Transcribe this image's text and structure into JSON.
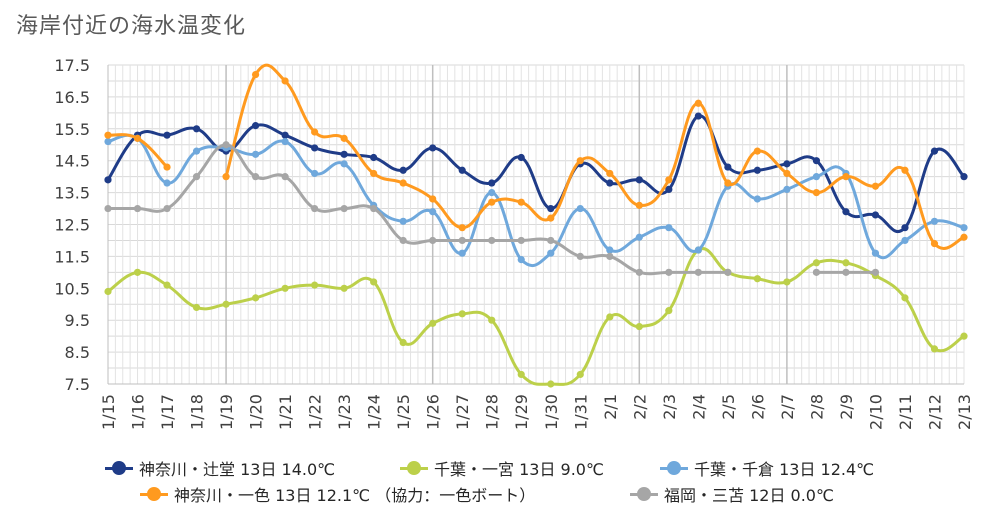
{
  "title": "海岸付近の海水温変化",
  "chart_data": {
    "type": "line",
    "title": "海岸付近の海水温変化",
    "xlabel": "",
    "ylabel": "",
    "ylim": [
      7.5,
      17.5
    ],
    "yticks": [
      "17.5",
      "16.5",
      "15.5",
      "14.5",
      "13.5",
      "12.5",
      "11.5",
      "10.5",
      "9.5",
      "8.5",
      "7.5"
    ],
    "grid": true,
    "legend_position": "bottom",
    "categories": [
      "1/15",
      "1/16",
      "1/17",
      "1/18",
      "1/19",
      "1/20",
      "1/21",
      "1/22",
      "1/23",
      "1/24",
      "1/25",
      "1/26",
      "1/27",
      "1/28",
      "1/29",
      "1/30",
      "1/31",
      "2/1",
      "2/2",
      "2/3",
      "2/4",
      "2/5",
      "2/6",
      "2/7",
      "2/8",
      "2/9",
      "2/10",
      "2/11",
      "2/12",
      "2/13"
    ],
    "series": [
      {
        "name": "神奈川・辻堂 13日 14.0℃",
        "color": "#1f3c88",
        "values": [
          13.9,
          15.3,
          15.3,
          15.5,
          14.8,
          15.6,
          15.3,
          14.9,
          14.7,
          14.6,
          14.2,
          14.9,
          14.2,
          13.8,
          14.6,
          13.0,
          14.4,
          13.8,
          13.9,
          13.6,
          15.9,
          14.3,
          14.2,
          14.4,
          14.5,
          12.9,
          12.8,
          12.4,
          14.8,
          14.0
        ]
      },
      {
        "name": "千葉・一宮 13日 9.0℃",
        "color": "#bcd04a",
        "values": [
          10.4,
          11.0,
          10.6,
          9.9,
          10.0,
          10.2,
          10.5,
          10.6,
          10.5,
          10.7,
          8.8,
          9.4,
          9.7,
          9.5,
          7.8,
          7.5,
          7.8,
          9.6,
          9.3,
          9.8,
          11.7,
          11.0,
          10.8,
          10.7,
          11.3,
          11.3,
          10.9,
          10.2,
          8.6,
          9.0
        ]
      },
      {
        "name": "千葉・千倉 13日 12.4℃",
        "color": "#6fa8dc",
        "values": [
          15.1,
          15.2,
          13.8,
          14.8,
          14.9,
          14.7,
          15.1,
          14.1,
          14.4,
          13.1,
          12.6,
          12.9,
          11.6,
          13.5,
          11.4,
          11.6,
          13.0,
          11.7,
          12.1,
          12.4,
          11.7,
          13.7,
          13.3,
          13.6,
          14.0,
          14.1,
          11.6,
          12.0,
          12.6,
          12.4
        ]
      },
      {
        "name": "神奈川・一色 13日 12.1℃ （協力：一色ボート）",
        "color": "#ff9a1f",
        "values": [
          15.3,
          15.2,
          14.3,
          null,
          14.0,
          17.2,
          17.0,
          15.4,
          15.2,
          14.1,
          13.8,
          13.3,
          12.4,
          13.2,
          13.2,
          12.7,
          14.5,
          14.1,
          13.1,
          13.9,
          16.3,
          13.8,
          14.8,
          14.1,
          13.5,
          14.0,
          13.7,
          14.2,
          11.9,
          12.1
        ]
      },
      {
        "name": "福岡・三苫 12日 0.0℃",
        "color": "#a6a6a6",
        "values": [
          13.0,
          13.0,
          13.0,
          14.0,
          15.0,
          14.0,
          14.0,
          13.0,
          13.0,
          13.0,
          12.0,
          12.0,
          12.0,
          12.0,
          12.0,
          12.0,
          11.5,
          11.5,
          11.0,
          11.0,
          11.0,
          11.0,
          null,
          null,
          11.0,
          11.0,
          11.0,
          null,
          null,
          null
        ]
      }
    ]
  }
}
